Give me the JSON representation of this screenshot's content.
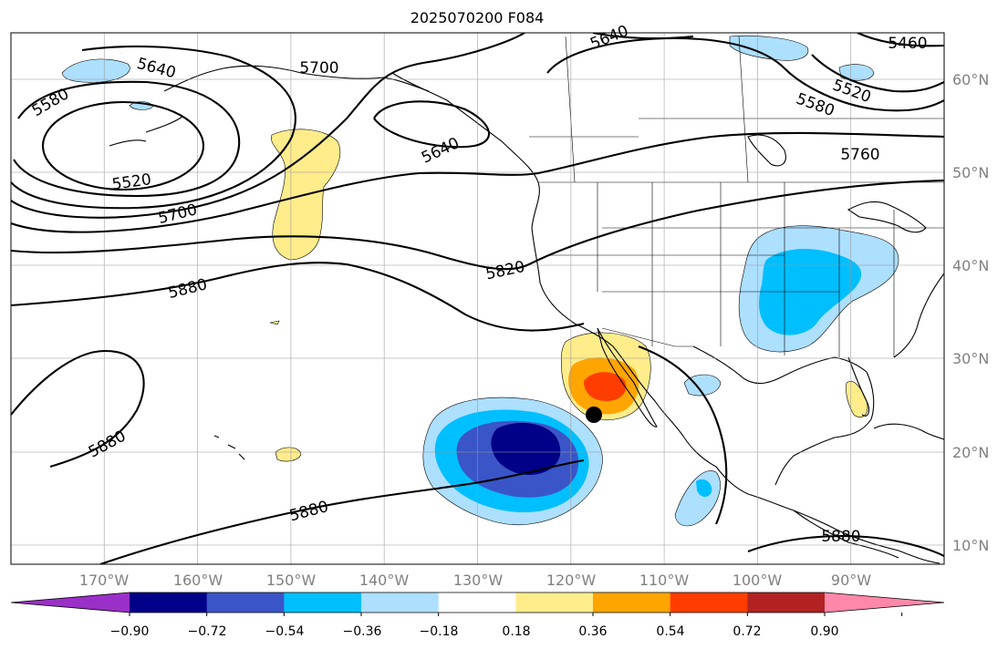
{
  "title": "2025070200 F084",
  "map": {
    "lon_range": [
      -180,
      -80
    ],
    "lat_range": [
      8,
      65
    ],
    "longitude_labels": [
      "170°W",
      "160°W",
      "150°W",
      "140°W",
      "130°W",
      "120°W",
      "110°W",
      "100°W",
      "90°W"
    ],
    "latitude_labels": [
      "60°N",
      "50°N",
      "40°N",
      "30°N",
      "20°N",
      "10°N"
    ],
    "gridlines": true,
    "contour_field": "geopotential height (gpm)",
    "contour_labels": [
      "5640",
      "5700",
      "5460",
      "5580",
      "5520",
      "5580",
      "5640",
      "5520",
      "5760",
      "5700",
      "5820",
      "5880",
      "5880",
      "5880",
      "5880",
      "5640"
    ],
    "marker": {
      "name": "point-marker",
      "lon": -117.5,
      "lat": 24
    }
  },
  "colorbar": {
    "ticks": [
      "−0.90",
      "−0.72",
      "−0.54",
      "−0.36",
      "−0.18",
      "0.18",
      "0.36",
      "0.54",
      "0.72",
      "0.90"
    ],
    "colors": [
      "#9b30c8",
      "#000088",
      "#3a55c8",
      "#00bfff",
      "#addfff",
      "#ffffff",
      "#ffec8b",
      "#ffa500",
      "#ff3d00",
      "#b22222",
      "#ff88aa"
    ],
    "extend": "both"
  }
}
